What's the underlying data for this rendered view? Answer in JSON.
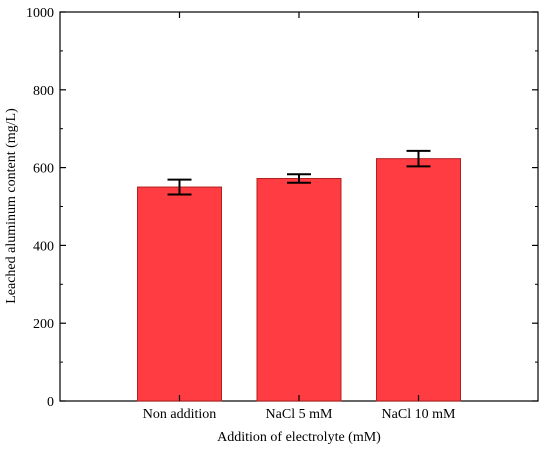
{
  "chart_data": {
    "type": "bar",
    "title": "",
    "xlabel": "Addition of electrolyte (mM)",
    "ylabel": "Leached aluminum content (mg/L)",
    "categories": [
      "Non addition",
      "NaCl 5 mM",
      "NaCl 10 mM"
    ],
    "values": [
      550,
      572,
      623
    ],
    "errors": [
      19,
      11,
      20
    ],
    "ylim": [
      0,
      1000
    ],
    "yticks": [
      "0",
      "200",
      "400",
      "600",
      "800",
      "1000"
    ],
    "grid": false,
    "legend": "none",
    "bar_color": "#ff3c41",
    "bar_edge_color": "#b02020"
  }
}
